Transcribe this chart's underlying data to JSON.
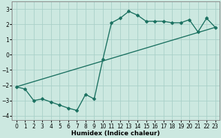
{
  "xlabel": "Humidex (Indice chaleur)",
  "bg_color": "#cce8e0",
  "grid_color": "#a8cfc8",
  "line_color": "#1a7060",
  "xlim": [
    -0.5,
    23.5
  ],
  "ylim": [
    -4.3,
    3.5
  ],
  "yticks": [
    -4,
    -3,
    -2,
    -1,
    0,
    1,
    2,
    3
  ],
  "xticks": [
    0,
    1,
    2,
    3,
    4,
    5,
    6,
    7,
    8,
    9,
    10,
    11,
    12,
    13,
    14,
    15,
    16,
    17,
    18,
    19,
    20,
    21,
    22,
    23
  ],
  "line1_x": [
    0,
    1,
    2,
    3,
    4,
    5,
    6,
    7,
    8,
    9,
    10,
    11,
    12,
    13,
    14,
    15,
    16,
    17,
    18,
    19,
    20,
    21,
    22,
    23
  ],
  "line1_y": [
    -2.1,
    -2.25,
    -3.0,
    -2.9,
    -3.1,
    -3.3,
    -3.5,
    -3.65,
    -2.6,
    -2.9,
    -0.3,
    2.1,
    2.4,
    2.85,
    2.6,
    2.2,
    2.2,
    2.2,
    2.1,
    2.1,
    2.3,
    1.5,
    2.4,
    1.8
  ],
  "line2_x": [
    0,
    23
  ],
  "line2_y": [
    -2.1,
    1.8
  ],
  "marker": "D",
  "markersize": 2.5,
  "linewidth": 1.0,
  "tick_fontsize": 5.5,
  "xlabel_fontsize": 6.5,
  "title_fontsize": 5.5
}
